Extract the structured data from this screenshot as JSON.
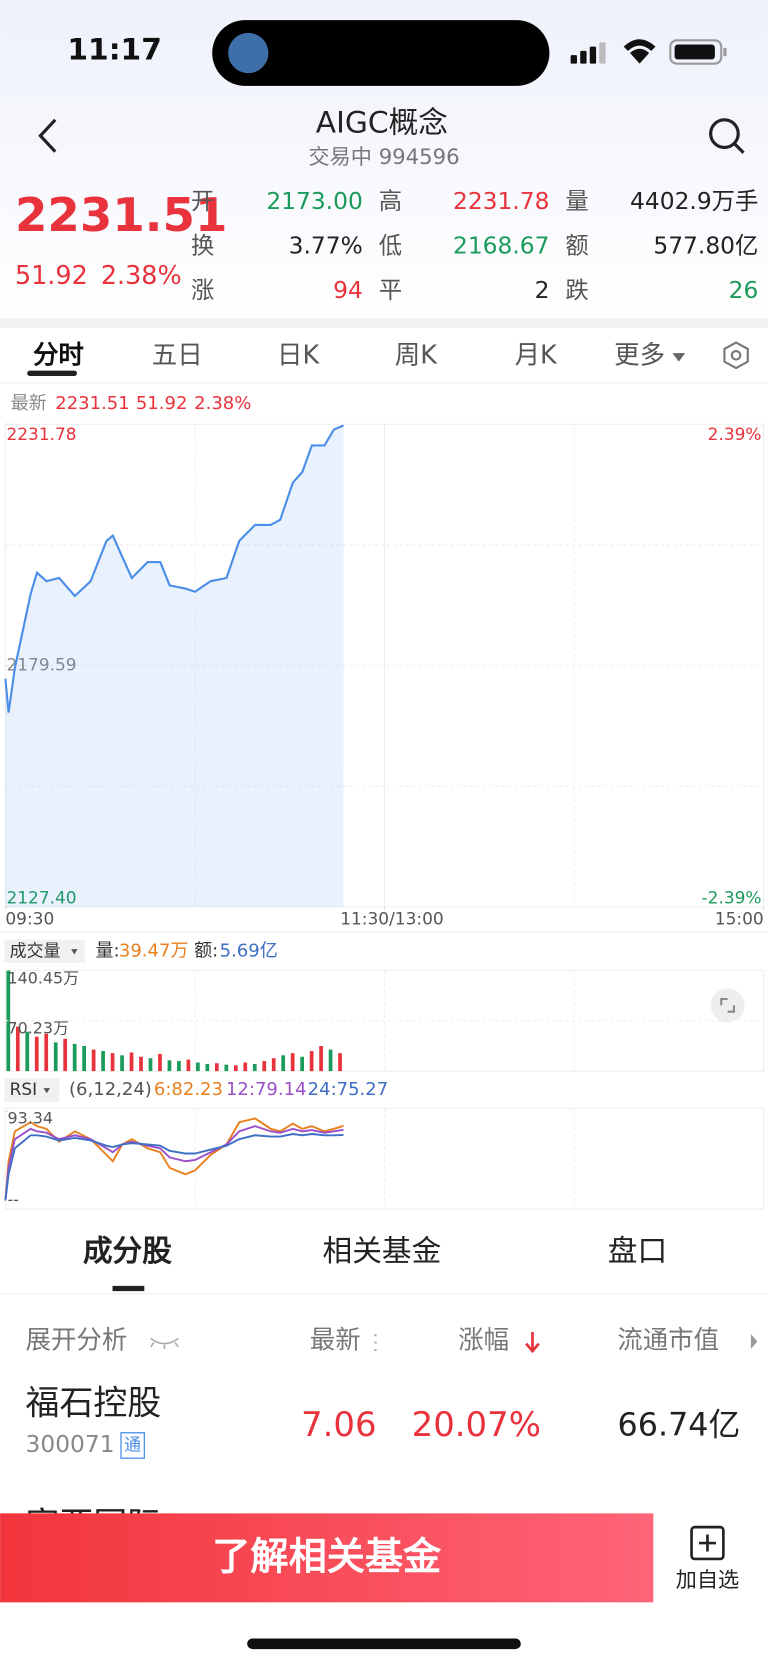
{
  "status_bar": {
    "time": "11:17"
  },
  "header": {
    "title": "AIGC概念",
    "subtitle": "交易中 994596"
  },
  "quote": {
    "price": "2231.51",
    "change": "51.92",
    "change_pct": "2.38%",
    "fields": [
      {
        "label": "开",
        "value": "2173.00",
        "color": "#1a9b5b"
      },
      {
        "label": "高",
        "value": "2231.78",
        "color": "#e8323c"
      },
      {
        "label": "量",
        "value": "4402.9万手",
        "color": "#222222"
      },
      {
        "label": "换",
        "value": "3.77%",
        "color": "#222222"
      },
      {
        "label": "低",
        "value": "2168.67",
        "color": "#1a9b5b"
      },
      {
        "label": "额",
        "value": "577.80亿",
        "color": "#222222"
      },
      {
        "label": "涨",
        "value": "94",
        "color": "#e8323c"
      },
      {
        "label": "平",
        "value": "2",
        "color": "#222222"
      },
      {
        "label": "跌",
        "value": "26",
        "color": "#1a9b5b"
      }
    ]
  },
  "tabs": [
    "分时",
    "五日",
    "日K",
    "周K",
    "月K",
    "更多"
  ],
  "intraday": {
    "legend": {
      "label": "最新",
      "price": "2231.51",
      "change": "51.92",
      "pct": "2.38%"
    },
    "color": "#4a8ee8",
    "x": [
      0,
      1,
      3,
      8,
      10,
      13,
      17,
      22,
      27,
      32,
      34,
      37,
      40,
      45,
      49,
      52,
      57,
      60,
      65,
      70,
      74,
      79,
      84,
      87,
      91,
      94,
      97,
      101,
      104,
      107
    ],
    "values": [
      2176.72,
      2169.38,
      2179.02,
      2195.07,
      2199.66,
      2197.83,
      2198.52,
      2194.62,
      2197.83,
      2206.54,
      2207.69,
      2203.1,
      2198.52,
      2201.96,
      2201.96,
      2196.91,
      2196.22,
      2195.53,
      2197.83,
      2198.52,
      2206.54,
      2209.99,
      2209.99,
      2211.13,
      2219.16,
      2221.46,
      2227.19,
      2227.19,
      2230.63,
      2231.51
    ],
    "xlim": [
      0,
      240
    ],
    "xticks": [
      {
        "value": 0,
        "label": "09:30"
      },
      {
        "value": 120,
        "label": "11:30/13:00"
      },
      {
        "value": 240,
        "label": "15:00"
      }
    ],
    "ylim": [
      2127.4,
      2231.78
    ],
    "yticks": [
      2231.78,
      2179.59,
      {
        "value": 2127.4,
        "label": "2127.40"
      }
    ],
    "pct_labels": [
      "2.39%",
      "-2.39%"
    ]
  },
  "volume": {
    "title": "成交量",
    "vol_label": "量:",
    "vol": "39.47万",
    "amt_label": "额:",
    "amt": "5.69亿",
    "ylim": [
      0,
      140.45
    ],
    "yticks": [
      {
        "value": 140.45,
        "label": "140.45万"
      },
      {
        "value": 70.23,
        "label": "70.23万"
      }
    ],
    "values": [
      140.45,
      62,
      55,
      48,
      52,
      40,
      45,
      38,
      35,
      30,
      28,
      25,
      22,
      26,
      20,
      18,
      24,
      15,
      14,
      16,
      12,
      10,
      11,
      9,
      8,
      12,
      10,
      14,
      18,
      22,
      25,
      20,
      28,
      35,
      30,
      25
    ],
    "colors": [
      "#1a9b5b",
      "#e8323c",
      "#1a9b5b",
      "#e8323c",
      "#e8323c",
      "#1a9b5b",
      "#e8323c",
      "#1a9b5b",
      "#1a9b5b",
      "#e8323c",
      "#1a9b5b",
      "#e8323c",
      "#1a9b5b",
      "#e8323c",
      "#e8323c",
      "#1a9b5b",
      "#e8323c",
      "#1a9b5b",
      "#1a9b5b",
      "#e8323c",
      "#1a9b5b",
      "#1a9b5b",
      "#e8323c",
      "#1a9b5b",
      "#e8323c",
      "#e8323c",
      "#1a9b5b",
      "#e8323c",
      "#e8323c",
      "#1a9b5b",
      "#e8323c",
      "#1a9b5b",
      "#e8323c",
      "#e8323c",
      "#1a9b5b",
      "#e8323c"
    ]
  },
  "rsi": {
    "title": "RSI",
    "params": "(6,12,24)",
    "ylim": [
      20,
      93.34
    ],
    "yticks": [
      {
        "value": 93.34,
        "label": "93.34"
      }
    ],
    "bottom_label": "--",
    "series": [
      {
        "name": "6:82.23",
        "color": "#e8801e",
        "values": [
          25,
          55,
          78,
          85,
          82,
          80,
          70,
          78,
          72,
          60,
          55,
          68,
          72,
          65,
          62,
          50,
          45,
          48,
          60,
          68,
          85,
          88,
          80,
          78,
          84,
          80,
          82,
          78,
          80,
          82.23
        ]
      },
      {
        "name": "12:79.14",
        "color": "#9b4fc9",
        "values": [
          25,
          50,
          72,
          80,
          78,
          77,
          72,
          75,
          72,
          65,
          62,
          68,
          70,
          67,
          65,
          58,
          55,
          56,
          62,
          68,
          78,
          82,
          78,
          77,
          80,
          78,
          79,
          77,
          78,
          79.14
        ]
      },
      {
        "name": "24:75.27",
        "color": "#3e6fc4",
        "values": [
          25,
          45,
          65,
          75,
          75,
          74,
          71,
          73,
          71,
          67,
          66,
          68,
          69,
          68,
          67,
          63,
          61,
          61,
          64,
          67,
          72,
          75,
          74,
          74,
          76,
          75,
          76,
          75,
          75,
          75.27
        ]
      }
    ]
  },
  "sections": [
    "成分股",
    "相关基金",
    "盘口"
  ],
  "table": {
    "headers": [
      "展开分析",
      "最新",
      "涨幅",
      "流通市值"
    ],
    "rows": [
      {
        "name": "福石控股",
        "code": "300071",
        "tag": "通",
        "price": "7.06",
        "pct": "20.07%",
        "cap": "66.74亿"
      }
    ],
    "partial_row": "富亚国际"
  },
  "bottom": {
    "cta": "了解相关基金",
    "watch": "加自选"
  }
}
